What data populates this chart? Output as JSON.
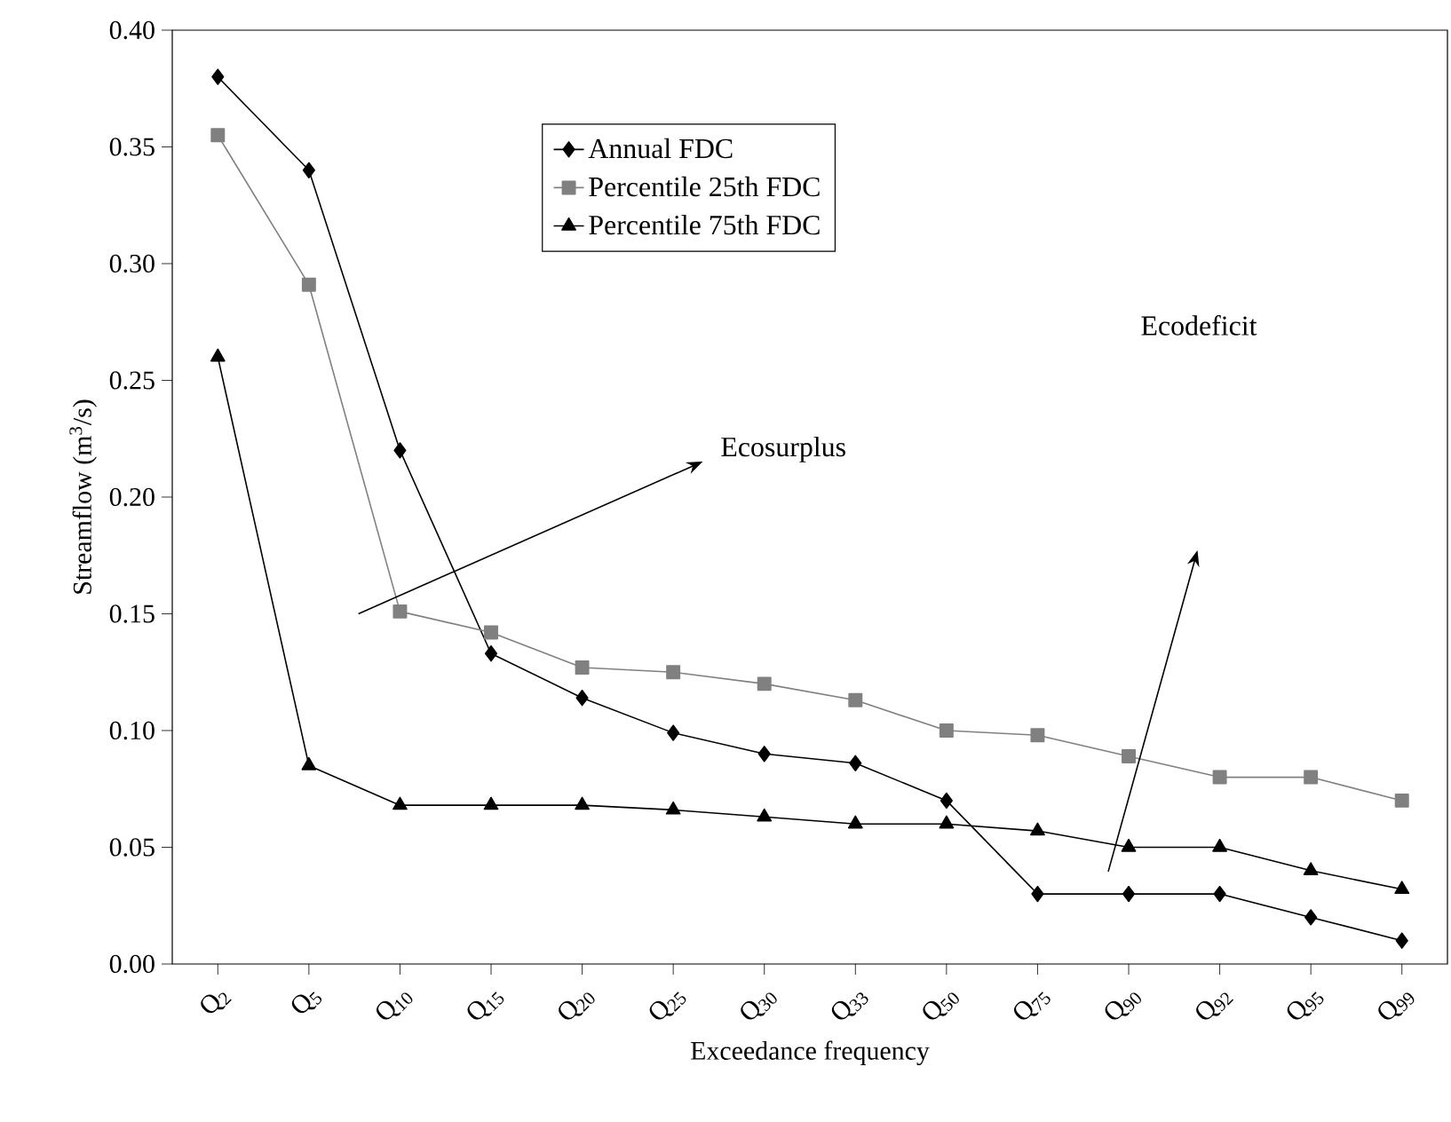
{
  "chart_data": {
    "type": "line",
    "xlabel": "Exceedance frequency",
    "ylabel": "Streamflow (m$^{3}$/s)",
    "categories": [
      "Q$_{2}$",
      "Q$_{5}$",
      "Q$_{10}$",
      "Q$_{15}$",
      "Q$_{20}$",
      "Q$_{25}$",
      "Q$_{30}$",
      "Q$_{33}$",
      "Q$_{50}$",
      "Q$_{75}$",
      "Q$_{90}$",
      "Q$_{92}$",
      "Q$_{95}$",
      "Q$_{99}$"
    ],
    "series": [
      {
        "name": "Annual FDC",
        "color": "#000000",
        "marker": "diamond",
        "values": [
          0.38,
          0.34,
          0.22,
          0.133,
          0.114,
          0.099,
          0.09,
          0.086,
          0.07,
          0.03,
          0.03,
          0.03,
          0.02,
          0.01
        ]
      },
      {
        "name": "Percentile 25th FDC",
        "color": "#808080",
        "marker": "square",
        "values": [
          0.355,
          0.291,
          0.151,
          0.142,
          0.127,
          0.125,
          0.12,
          0.113,
          0.1,
          0.098,
          0.089,
          0.08,
          0.08,
          0.07
        ]
      },
      {
        "name": "Percentile 75th FDC",
        "color": "#000000",
        "marker": "triangle",
        "values": [
          0.26,
          0.085,
          0.068,
          0.068,
          0.068,
          0.066,
          0.063,
          0.06,
          0.06,
          0.057,
          0.05,
          0.05,
          0.04,
          0.032
        ]
      }
    ],
    "ylim": [
      0,
      0.4
    ],
    "yticks": [
      {
        "value": 0,
        "label": "0.00"
      },
      {
        "value": 0.05,
        "label": "0.05"
      },
      {
        "value": 0.1,
        "label": "0.10"
      },
      {
        "value": 0.15,
        "label": "0.15"
      },
      {
        "value": 0.2,
        "label": "0.20"
      },
      {
        "value": 0.25,
        "label": "0.25"
      },
      {
        "value": 0.3,
        "label": "0.30"
      },
      {
        "value": 0.35,
        "label": "0.35"
      },
      {
        "value": 0.4,
        "label": "0.40"
      }
    ],
    "annotations": [
      "Ecosurplus",
      "Ecodeficit"
    ],
    "legend": "top",
    "grid": false,
    "line_style": "solid"
  }
}
